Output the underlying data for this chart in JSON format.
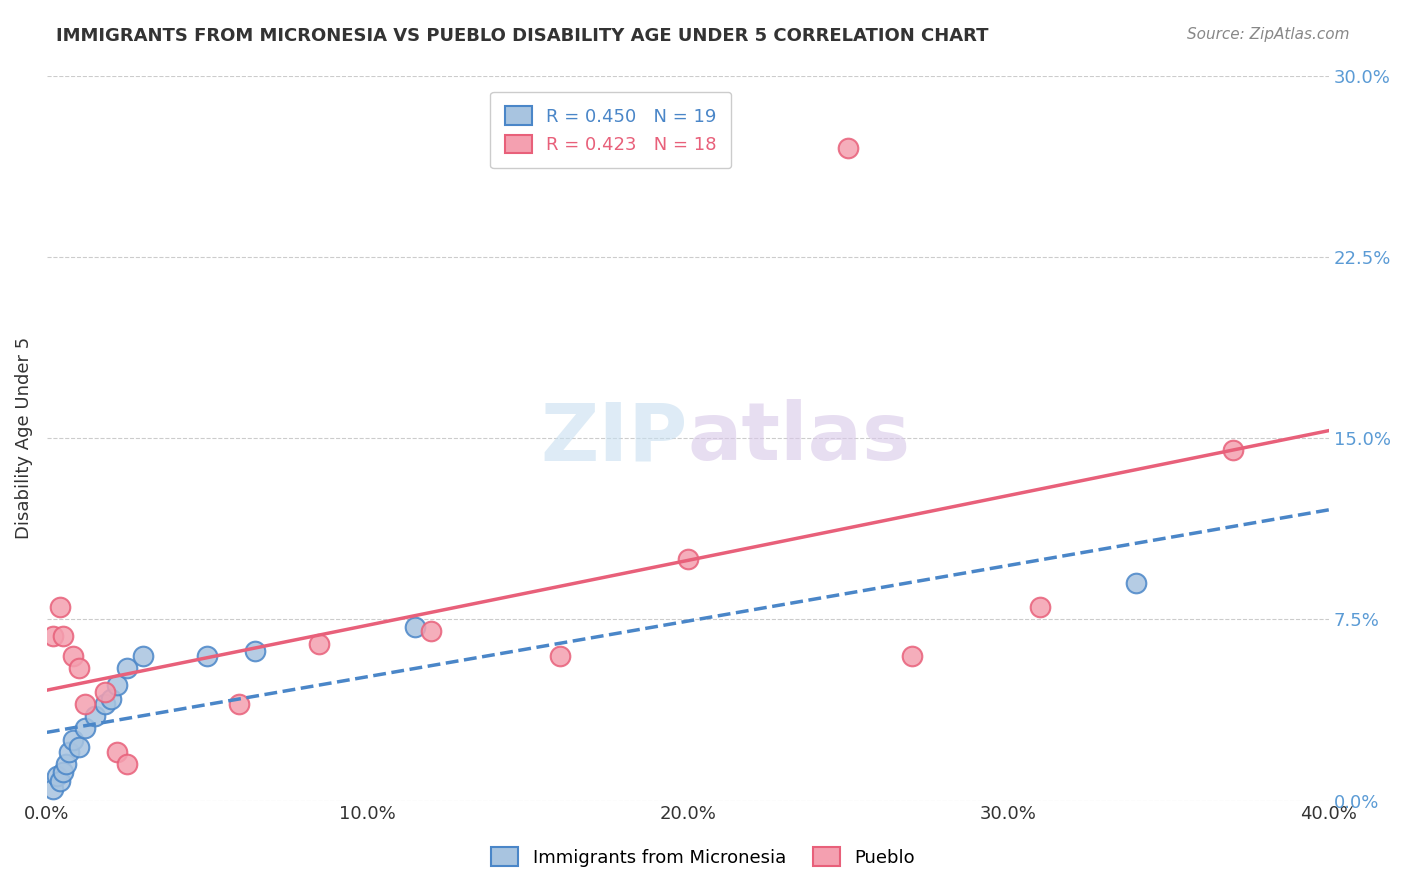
{
  "title": "IMMIGRANTS FROM MICRONESIA VS PUEBLO DISABILITY AGE UNDER 5 CORRELATION CHART",
  "source": "Source: ZipAtlas.com",
  "xlabel_ticks": [
    "0.0%",
    "10.0%",
    "20.0%",
    "30.0%",
    "40.0%"
  ],
  "xlabel_tick_vals": [
    0.0,
    0.1,
    0.2,
    0.3,
    0.4
  ],
  "ylabel": "Disability Age Under 5",
  "ylabel_ticks": [
    "0.0%",
    "7.5%",
    "15.0%",
    "22.5%",
    "30.0%"
  ],
  "ylabel_tick_vals": [
    0.0,
    0.075,
    0.15,
    0.225,
    0.3
  ],
  "xlim": [
    0.0,
    0.4
  ],
  "ylim": [
    0.0,
    0.3
  ],
  "blue_label": "Immigrants from Micronesia",
  "pink_label": "Pueblo",
  "blue_R": 0.45,
  "blue_N": 19,
  "pink_R": 0.423,
  "pink_N": 18,
  "blue_color": "#a8c4e0",
  "pink_color": "#f4a0b0",
  "blue_line_color": "#4a86c8",
  "pink_line_color": "#e8607a",
  "watermark_zip": "ZIP",
  "watermark_atlas": "atlas",
  "blue_scatter_x": [
    0.002,
    0.003,
    0.004,
    0.005,
    0.006,
    0.007,
    0.008,
    0.01,
    0.012,
    0.015,
    0.018,
    0.02,
    0.022,
    0.025,
    0.03,
    0.05,
    0.065,
    0.115,
    0.34
  ],
  "blue_scatter_y": [
    0.005,
    0.01,
    0.008,
    0.012,
    0.015,
    0.02,
    0.025,
    0.022,
    0.03,
    0.035,
    0.04,
    0.042,
    0.048,
    0.055,
    0.06,
    0.06,
    0.062,
    0.072,
    0.09
  ],
  "pink_scatter_x": [
    0.002,
    0.004,
    0.005,
    0.008,
    0.01,
    0.012,
    0.018,
    0.022,
    0.025,
    0.06,
    0.085,
    0.12,
    0.16,
    0.2,
    0.25,
    0.27,
    0.31,
    0.37
  ],
  "pink_scatter_y": [
    0.068,
    0.08,
    0.068,
    0.06,
    0.055,
    0.04,
    0.045,
    0.02,
    0.015,
    0.04,
    0.065,
    0.07,
    0.06,
    0.1,
    0.27,
    0.06,
    0.08,
    0.145
  ]
}
